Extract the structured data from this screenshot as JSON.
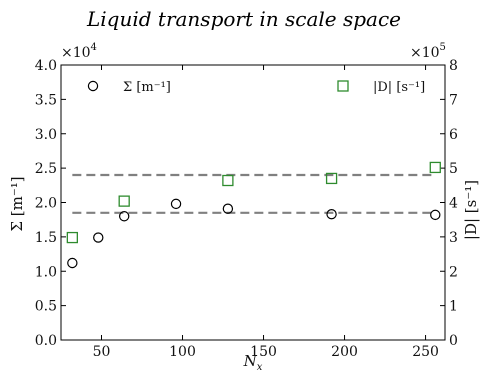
{
  "chart_data": {
    "type": "scatter",
    "title": "Liquid transport in scale space",
    "xlabel": "N",
    "xlabel_sub": "x",
    "ylabel_left": "Σ [m⁻¹]",
    "ylabel_right": "|D| [s⁻¹]",
    "left_multiplier": "×10",
    "left_multiplier_exp": "4",
    "right_multiplier": "×10",
    "right_multiplier_exp": "5",
    "xlim": [
      25,
      262
    ],
    "ylim_left": [
      0,
      4.0
    ],
    "ylim_right": [
      0,
      8
    ],
    "x_ticks": [
      "50",
      "100",
      "150",
      "200",
      "250"
    ],
    "y_left_ticks": [
      "0.0",
      "0.5",
      "1.0",
      "1.5",
      "2.0",
      "2.5",
      "3.0",
      "3.5",
      "4.0"
    ],
    "y_right_ticks": [
      "0",
      "1",
      "2",
      "3",
      "4",
      "5",
      "6",
      "7",
      "8"
    ],
    "grid": false,
    "legend_placement": "top",
    "series": [
      {
        "name": "Σ [m⁻¹]",
        "axis": "left",
        "marker": "circle",
        "color": "#000000",
        "x": [
          32,
          48,
          64,
          96,
          128,
          192,
          256
        ],
        "y": [
          1.12,
          1.49,
          1.8,
          1.98,
          1.91,
          1.83,
          1.82
        ]
      },
      {
        "name": "|D| [s⁻¹]",
        "axis": "right",
        "marker": "square",
        "color": "#2e8b2e",
        "x": [
          32,
          64,
          128,
          192,
          256
        ],
        "y": [
          2.98,
          4.04,
          4.64,
          4.7,
          5.02
        ]
      }
    ],
    "reference_lines": [
      {
        "axis": "left",
        "y": 2.4,
        "style": "dashed",
        "color": "#808080"
      },
      {
        "axis": "left",
        "y": 1.85,
        "style": "dashed",
        "color": "#808080"
      }
    ],
    "legend": [
      {
        "label": "Σ [m⁻¹]",
        "marker": "circle"
      },
      {
        "label": "|D| [s⁻¹]",
        "marker": "square"
      }
    ]
  }
}
